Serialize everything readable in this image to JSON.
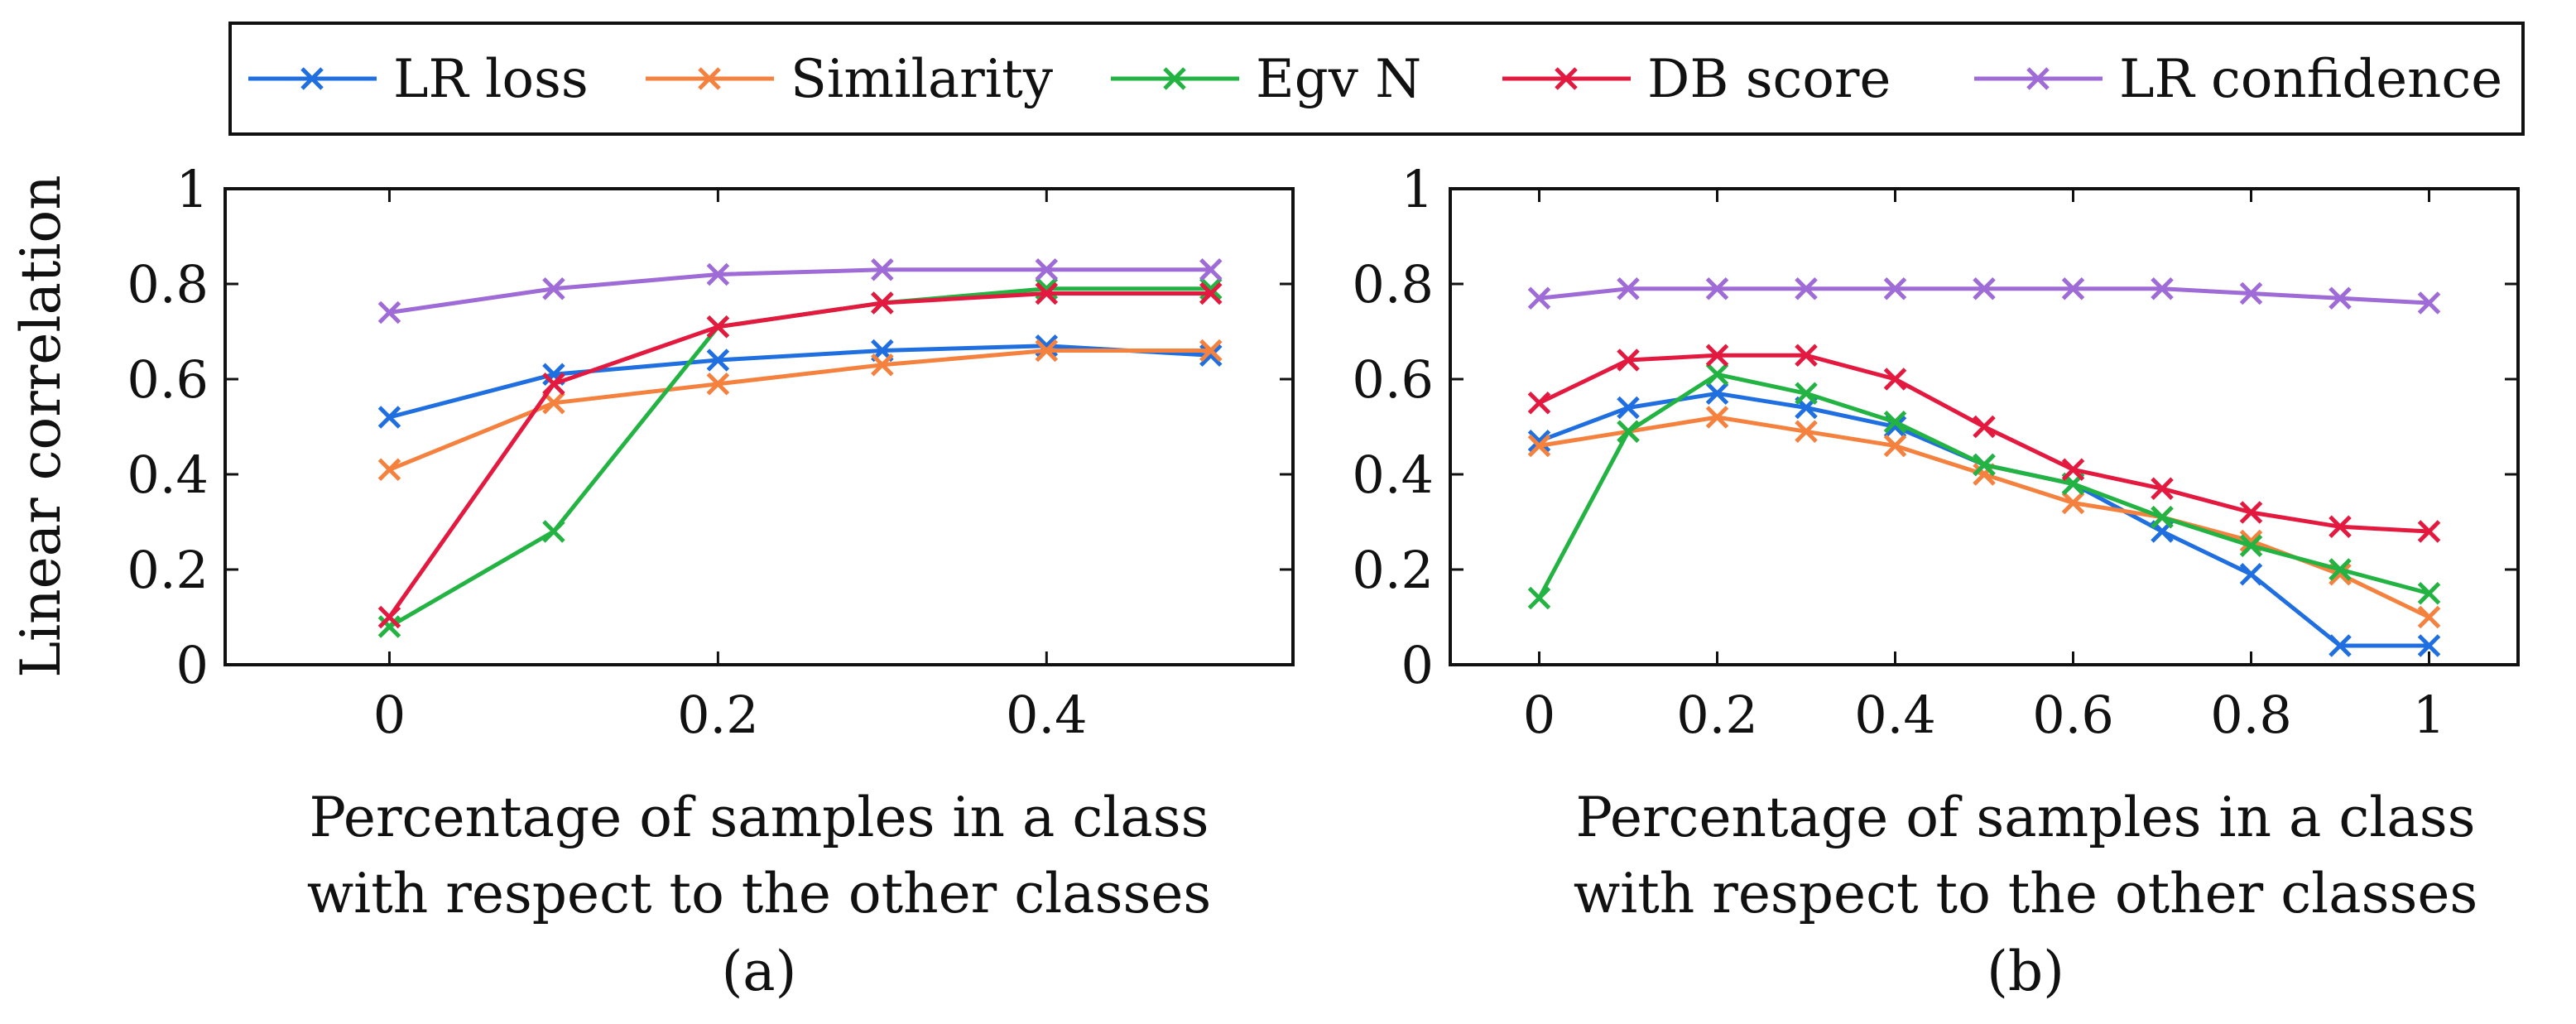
{
  "legend": [
    {
      "name": "LR loss",
      "color": "#1f6fe0"
    },
    {
      "name": "Similarity",
      "color": "#f5813f"
    },
    {
      "name": "Egv N",
      "color": "#22b342"
    },
    {
      "name": "DB score",
      "color": "#e3193f"
    },
    {
      "name": "LR confidence",
      "color": "#9f6bd6"
    }
  ],
  "y_axis_label": "Linear correlation",
  "chart_data": [
    {
      "type": "line",
      "panel": "(a)",
      "xlabel_line1": "Percentage of samples in a class",
      "xlabel_line2": "with respect to the other classes",
      "xlim": [
        -0.1,
        0.55
      ],
      "ylim": [
        0,
        1
      ],
      "xticks": [
        0,
        0.2,
        0.4
      ],
      "xtick_labels": [
        "0",
        "0.2",
        "0.4"
      ],
      "yticks": [
        0,
        0.2,
        0.4,
        0.6,
        0.8,
        1
      ],
      "ytick_labels": [
        "0",
        "0.2",
        "0.4",
        "0.6",
        "0.8",
        "1"
      ],
      "x": [
        0,
        0.1,
        0.2,
        0.3,
        0.4,
        0.5
      ],
      "series": [
        {
          "name": "LR loss",
          "color": "#1f6fe0",
          "values": [
            0.52,
            0.61,
            0.64,
            0.66,
            0.67,
            0.65
          ]
        },
        {
          "name": "Similarity",
          "color": "#f5813f",
          "values": [
            0.41,
            0.55,
            0.59,
            0.63,
            0.66,
            0.66
          ]
        },
        {
          "name": "Egv N",
          "color": "#22b342",
          "values": [
            0.08,
            0.28,
            0.71,
            0.76,
            0.79,
            0.79
          ]
        },
        {
          "name": "DB score",
          "color": "#e3193f",
          "values": [
            0.1,
            0.59,
            0.71,
            0.76,
            0.78,
            0.78
          ]
        },
        {
          "name": "LR confidence",
          "color": "#9f6bd6",
          "values": [
            0.74,
            0.79,
            0.82,
            0.83,
            0.83,
            0.83
          ]
        }
      ]
    },
    {
      "type": "line",
      "panel": "(b)",
      "xlabel_line1": "Percentage of samples in a class",
      "xlabel_line2": "with respect to the other classes",
      "xlim": [
        -0.1,
        1.1
      ],
      "ylim": [
        0,
        1
      ],
      "xticks": [
        0,
        0.2,
        0.4,
        0.6,
        0.8,
        1
      ],
      "xtick_labels": [
        "0",
        "0.2",
        "0.4",
        "0.6",
        "0.8",
        "1"
      ],
      "yticks": [
        0,
        0.2,
        0.4,
        0.6,
        0.8,
        1
      ],
      "ytick_labels": [
        "0",
        "0.2",
        "0.4",
        "0.6",
        "0.8",
        "1"
      ],
      "x": [
        0,
        0.1,
        0.2,
        0.3,
        0.4,
        0.5,
        0.6,
        0.7,
        0.8,
        0.9,
        1.0
      ],
      "series": [
        {
          "name": "LR loss",
          "color": "#1f6fe0",
          "values": [
            0.47,
            0.54,
            0.57,
            0.54,
            0.5,
            0.42,
            0.38,
            0.28,
            0.19,
            0.04,
            0.04
          ]
        },
        {
          "name": "Similarity",
          "color": "#f5813f",
          "values": [
            0.46,
            0.49,
            0.52,
            0.49,
            0.46,
            0.4,
            0.34,
            0.31,
            0.26,
            0.19,
            0.1
          ]
        },
        {
          "name": "Egv N",
          "color": "#22b342",
          "values": [
            0.14,
            0.49,
            0.61,
            0.57,
            0.51,
            0.42,
            0.38,
            0.31,
            0.25,
            0.2,
            0.15
          ]
        },
        {
          "name": "DB score",
          "color": "#e3193f",
          "values": [
            0.55,
            0.64,
            0.65,
            0.65,
            0.6,
            0.5,
            0.41,
            0.37,
            0.32,
            0.29,
            0.28
          ]
        },
        {
          "name": "LR confidence",
          "color": "#9f6bd6",
          "values": [
            0.77,
            0.79,
            0.79,
            0.79,
            0.79,
            0.79,
            0.79,
            0.79,
            0.78,
            0.77,
            0.76
          ]
        }
      ]
    }
  ]
}
